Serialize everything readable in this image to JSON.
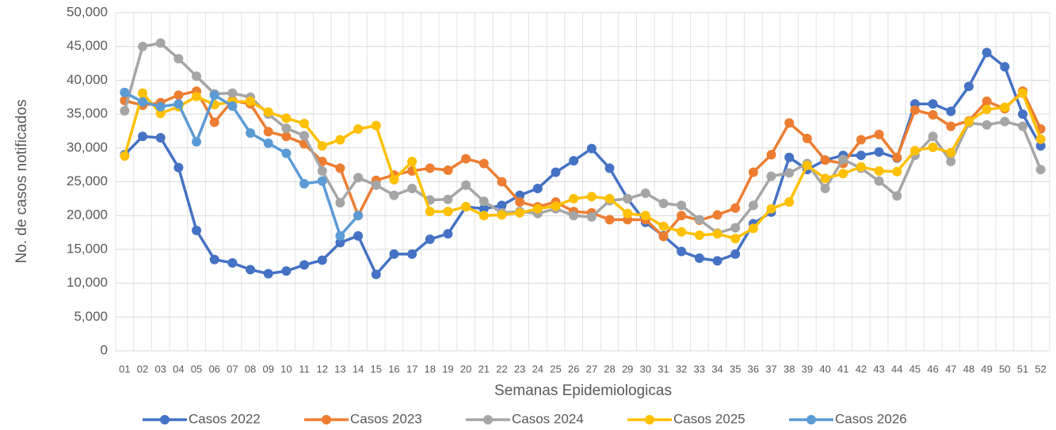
{
  "chart_data": {
    "type": "line",
    "x_label": "Semanas Epidemiologicas",
    "y_label": "No. de casos notificados",
    "categories": [
      "01",
      "02",
      "03",
      "04",
      "05",
      "06",
      "07",
      "08",
      "09",
      "10",
      "11",
      "12",
      "13",
      "14",
      "15",
      "16",
      "17",
      "18",
      "19",
      "20",
      "21",
      "22",
      "23",
      "24",
      "25",
      "26",
      "27",
      "28",
      "29",
      "30",
      "31",
      "32",
      "33",
      "34",
      "35",
      "36",
      "37",
      "38",
      "39",
      "40",
      "41",
      "42",
      "43",
      "44",
      "45",
      "46",
      "47",
      "48",
      "49",
      "50",
      "51",
      "52"
    ],
    "ylim": [
      0,
      50000
    ],
    "yticks": [
      0,
      {
        "value": 5000,
        "label": "5,000"
      },
      {
        "value": 10000,
        "label": "10,000"
      },
      {
        "value": 15000,
        "label": "15,000"
      },
      {
        "value": 20000,
        "label": "20,000"
      },
      {
        "value": 25000,
        "label": "25,000"
      },
      {
        "value": 30000,
        "label": "30,000"
      },
      {
        "value": 35000,
        "label": "35,000"
      },
      {
        "value": 40000,
        "label": "40,000"
      },
      {
        "value": 45000,
        "label": "45,000"
      },
      {
        "value": 50000,
        "label": "50,000"
      }
    ],
    "grid": true,
    "legend": "bottom",
    "series": [
      {
        "name": "Casos 2022",
        "color": "#4472c4",
        "values": [
          29000,
          31700,
          31500,
          27100,
          17800,
          13500,
          13000,
          12000,
          11400,
          11800,
          12700,
          13400,
          16000,
          17000,
          11300,
          14300,
          14300,
          16500,
          17300,
          21300,
          21000,
          21500,
          23000,
          24000,
          26400,
          28100,
          29900,
          27000,
          22500,
          19000,
          17000,
          14700,
          13700,
          13300,
          14300,
          18800,
          20500,
          28600,
          26800,
          28200,
          28900,
          28900,
          29400,
          28500,
          36500,
          36500,
          35400,
          39100,
          44100,
          42000,
          35000,
          30300
        ]
      },
      {
        "name": "Casos 2023",
        "color": "#ed7d31",
        "values": [
          37000,
          36300,
          36700,
          37800,
          38400,
          33800,
          37000,
          36500,
          32400,
          31700,
          30600,
          28000,
          27000,
          20000,
          25200,
          26000,
          26600,
          27000,
          26700,
          28400,
          27700,
          25000,
          22000,
          21300,
          22000,
          20600,
          20400,
          19400,
          19400,
          19400,
          16900,
          20000,
          19300,
          20100,
          21100,
          26400,
          29000,
          33700,
          31400,
          28200,
          27700,
          31200,
          32000,
          28600,
          35600,
          34900,
          33200,
          34000,
          36900,
          35800,
          38400,
          32800
        ]
      },
      {
        "name": "Casos 2024",
        "color": "#a5a5a5",
        "values": [
          35500,
          45000,
          45500,
          43200,
          40600,
          38000,
          38100,
          37500,
          35000,
          32900,
          31800,
          26600,
          21900,
          25600,
          24500,
          23000,
          24000,
          22300,
          22400,
          24500,
          22100,
          20400,
          20600,
          20300,
          21000,
          20000,
          19800,
          22200,
          22500,
          23300,
          21800,
          21500,
          19400,
          17400,
          18200,
          21500,
          25800,
          26300,
          27700,
          24000,
          28300,
          27000,
          25100,
          22900,
          28900,
          31700,
          28000,
          33700,
          33400,
          33900,
          33200,
          26800
        ]
      },
      {
        "name": "Casos 2025",
        "color": "#ffc000",
        "values": [
          28800,
          38100,
          35100,
          36100,
          37600,
          36400,
          36800,
          36900,
          35300,
          34400,
          33600,
          30300,
          31200,
          32800,
          33300,
          25300,
          28000,
          20600,
          20600,
          21300,
          20000,
          20100,
          20400,
          21000,
          21400,
          22500,
          22800,
          22500,
          20300,
          20000,
          18400,
          17600,
          17100,
          17300,
          16600,
          18100,
          21000,
          22000,
          27400,
          25500,
          26200,
          27200,
          26600,
          26500,
          29600,
          30100,
          29300,
          33900,
          35700,
          36000,
          38100,
          31300
        ]
      },
      {
        "name": "Casos 2026",
        "color": "#5b9bd5",
        "values": [
          38200,
          36800,
          36100,
          36500,
          30900,
          37800,
          36200,
          32200,
          30700,
          29200,
          24700,
          25100,
          17000,
          20000,
          null,
          null,
          null,
          null,
          null,
          null,
          null,
          null,
          null,
          null,
          null,
          null,
          null,
          null,
          null,
          null,
          null,
          null,
          null,
          null,
          null,
          null,
          null,
          null,
          null,
          null,
          null,
          null,
          null,
          null,
          null,
          null,
          null,
          null,
          null,
          null,
          null,
          null
        ]
      }
    ]
  }
}
